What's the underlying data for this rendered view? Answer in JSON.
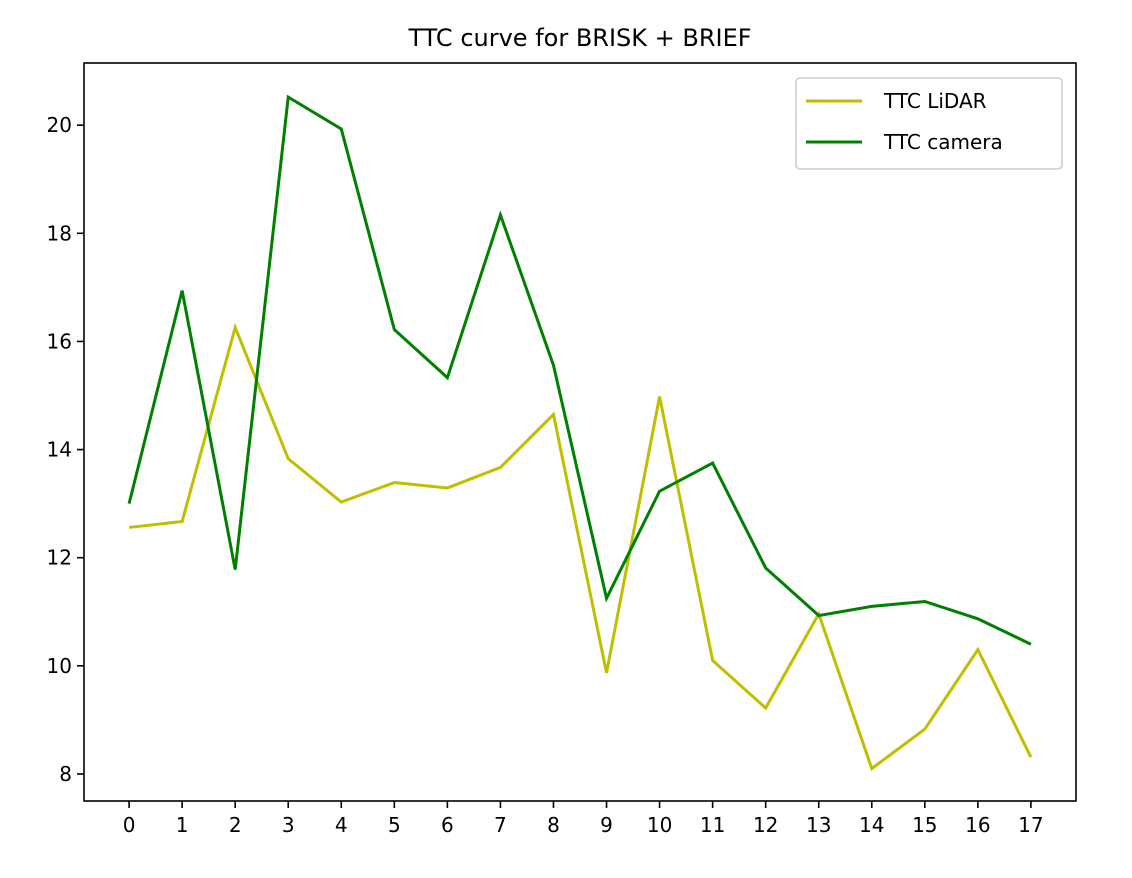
{
  "chart_data": {
    "type": "line",
    "title": "TTC curve for BRISK + BRIEF",
    "xlabel": "",
    "ylabel": "",
    "x": [
      0,
      1,
      2,
      3,
      4,
      5,
      6,
      7,
      8,
      9,
      10,
      11,
      12,
      13,
      14,
      15,
      16,
      17
    ],
    "x_ticks": [
      "0",
      "1",
      "2",
      "3",
      "4",
      "5",
      "6",
      "7",
      "8",
      "9",
      "10",
      "11",
      "12",
      "13",
      "14",
      "15",
      "16",
      "17"
    ],
    "y_ticks": [
      "8",
      "10",
      "12",
      "14",
      "16",
      "18",
      "20"
    ],
    "xlim": [
      -0.85,
      17.85
    ],
    "ylim": [
      7.5,
      21.15
    ],
    "grid": false,
    "legend_position": "upper-right",
    "series": [
      {
        "name": "TTC LiDAR",
        "color": "#bfbf00",
        "values": [
          12.56,
          12.67,
          16.26,
          13.83,
          13.03,
          13.39,
          13.29,
          13.67,
          14.65,
          9.87,
          14.98,
          10.1,
          9.22,
          10.96,
          8.1,
          8.83,
          10.3,
          8.31
        ]
      },
      {
        "name": "TTC camera",
        "color": "#008000",
        "values": [
          13.0,
          16.94,
          11.78,
          20.52,
          19.93,
          16.22,
          15.33,
          18.34,
          15.56,
          11.25,
          13.23,
          13.75,
          11.81,
          10.93,
          11.1,
          11.19,
          10.87,
          10.4
        ]
      }
    ]
  }
}
